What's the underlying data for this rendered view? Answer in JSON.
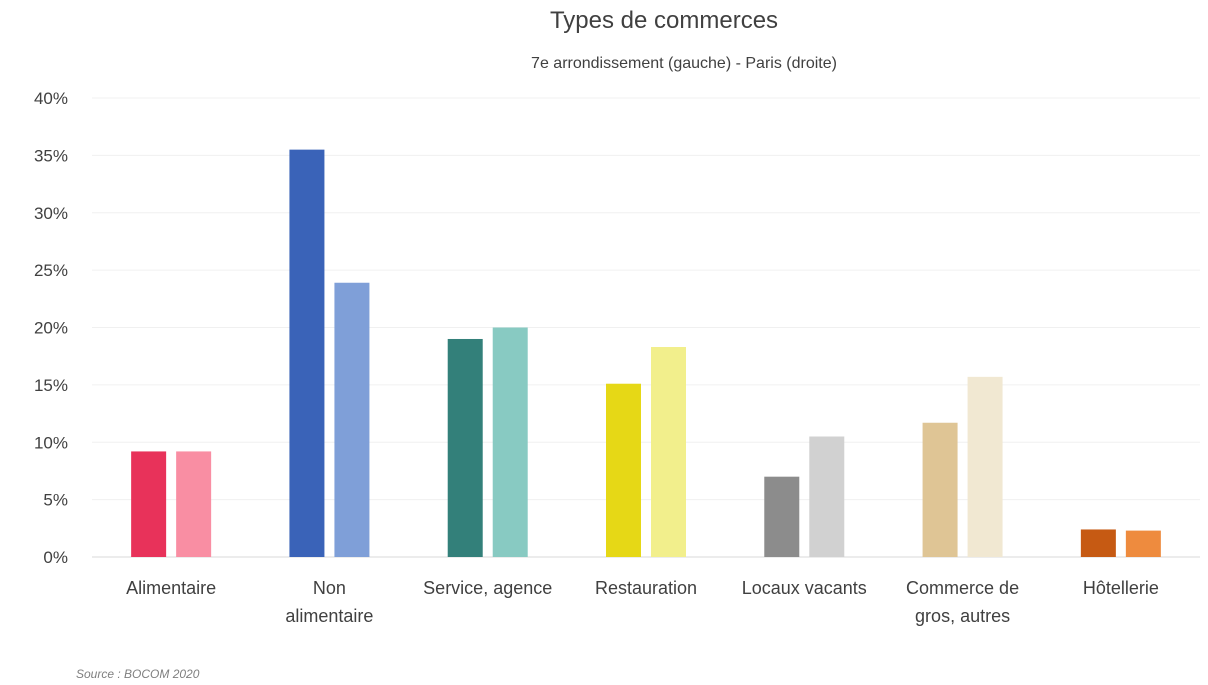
{
  "chart_data": {
    "type": "bar",
    "title": "Types de commerces",
    "subtitle": "7e arrondissement (gauche)  -  Paris (droite)",
    "categories": [
      [
        "Alimentaire"
      ],
      [
        "Non",
        "alimentaire"
      ],
      [
        "Service, agence"
      ],
      [
        "Restauration"
      ],
      [
        "Locaux vacants"
      ],
      [
        "Commerce de",
        "gros, autres"
      ],
      [
        "Hôtellerie"
      ]
    ],
    "series": [
      {
        "values": [
          9.2,
          35.5,
          19.0,
          15.1,
          7.0,
          11.7,
          2.4
        ]
      },
      {
        "values": [
          9.2,
          23.9,
          20.0,
          18.3,
          10.5,
          15.7,
          2.3
        ]
      }
    ],
    "colors": [
      [
        "#e8325a",
        "#f98ea3"
      ],
      [
        "#3a63b8",
        "#7f9fd8"
      ],
      [
        "#33807a",
        "#88cac2"
      ],
      [
        "#e6d816",
        "#f2ef8c"
      ],
      [
        "#8c8c8c",
        "#d1d1d1"
      ],
      [
        "#dfc595",
        "#f1e8d2"
      ],
      [
        "#c65a13",
        "#ee8b3e"
      ]
    ],
    "ylim": [
      0,
      40
    ],
    "yticks": [
      "0%",
      "5%",
      "10%",
      "15%",
      "20%",
      "25%",
      "30%",
      "35%",
      "40%"
    ],
    "ytick_values": [
      0,
      5,
      10,
      15,
      20,
      25,
      30,
      35,
      40
    ],
    "grid": true,
    "source": "Source : BOCOM 2020"
  }
}
